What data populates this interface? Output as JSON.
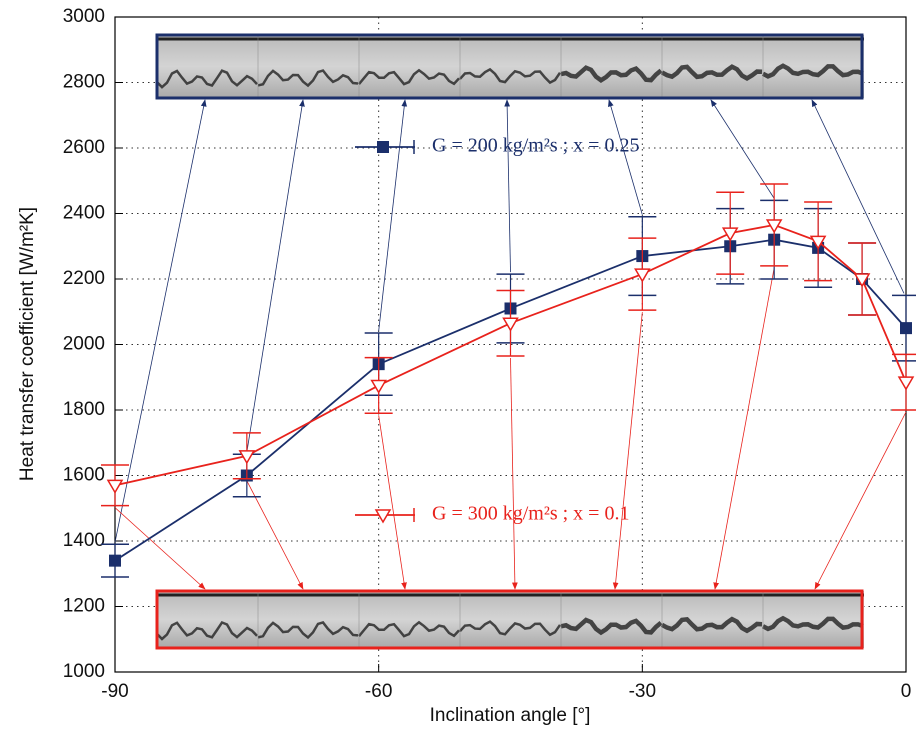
{
  "chart_data": {
    "type": "line",
    "x_label": "Inclination angle [°]",
    "y_label": "Heat transfer coefficient [W/m²K]",
    "x": [
      -90,
      -75,
      -60,
      -45,
      -30,
      -20,
      -15,
      -10,
      -5,
      0
    ],
    "series": [
      {
        "name": "G = 200 kg/m²s ; x = 0.25",
        "color": "#1b2f6b",
        "marker": "square",
        "values": [
          1340,
          1600,
          1940,
          2110,
          2270,
          2300,
          2320,
          2295,
          2200,
          2050
        ],
        "errors": [
          50,
          65,
          95,
          105,
          120,
          115,
          120,
          120,
          110,
          100
        ]
      },
      {
        "name": "G = 300 kg/m²s ; x = 0.1",
        "color": "#e8221c",
        "marker": "triangle-down",
        "values": [
          1570,
          1660,
          1875,
          2065,
          2215,
          2340,
          2365,
          2315,
          2200,
          1885
        ],
        "errors": [
          62,
          70,
          85,
          100,
          110,
          125,
          125,
          120,
          110,
          85
        ]
      }
    ],
    "xlim": [
      -90,
      0
    ],
    "xticks": [
      -90,
      -60,
      -30,
      0
    ],
    "ylim": [
      1000,
      3000
    ],
    "yticks": [
      1000,
      1200,
      1400,
      1600,
      1800,
      2000,
      2200,
      2400,
      2600,
      2800,
      3000
    ],
    "grid": true
  }
}
